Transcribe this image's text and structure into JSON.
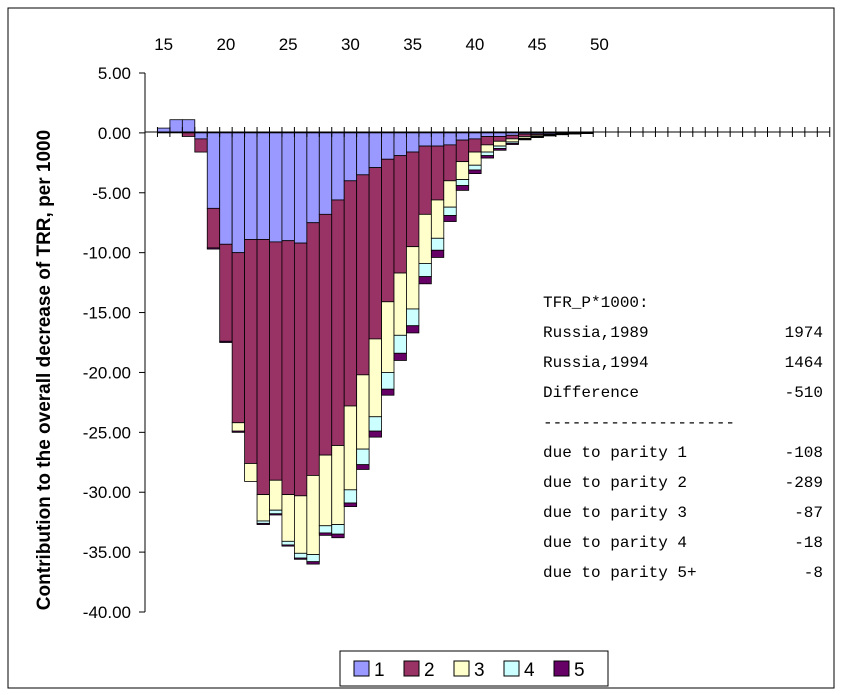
{
  "chart_data": {
    "type": "bar",
    "stacked": true,
    "title": "",
    "xlabel": "",
    "ylabel": "Contribution to the overall decrease of TRR, per 1000",
    "xlim": [
      14,
      55
    ],
    "ylim": [
      -40,
      5
    ],
    "x_ticks": [
      "15",
      "20",
      "25",
      "30",
      "35",
      "40",
      "45",
      "50"
    ],
    "y_ticks": [
      "5.00",
      "0.00",
      "-5.00",
      "-10.00",
      "-15.00",
      "-20.00",
      "-25.00",
      "-30.00",
      "-35.00",
      "-40.00"
    ],
    "grid": false,
    "legend_position": "bottom",
    "x": [
      15,
      16,
      17,
      18,
      19,
      20,
      21,
      22,
      23,
      24,
      25,
      26,
      27,
      28,
      29,
      30,
      31,
      32,
      33,
      34,
      35,
      36,
      37,
      38,
      39,
      40,
      41,
      42,
      43,
      44,
      45,
      46,
      47,
      48,
      49
    ],
    "series": [
      {
        "name": "1",
        "color": "#9999ff",
        "values": [
          0.4,
          1.1,
          1.1,
          -0.5,
          -6.3,
          -9.3,
          -10.0,
          -8.9,
          -8.9,
          -9.1,
          -9.0,
          -9.2,
          -7.5,
          -6.8,
          -5.6,
          -4.0,
          -3.5,
          -2.9,
          -2.2,
          -1.9,
          -1.6,
          -1.1,
          -1.1,
          -1.0,
          -0.6,
          -0.5,
          -0.3,
          -0.3,
          -0.2,
          -0.1,
          -0.1,
          -0.1,
          -0.05,
          -0.03,
          -0.02
        ]
      },
      {
        "name": "2",
        "color": "#993366",
        "values": [
          0,
          0,
          -0.3,
          -1.1,
          -3.3,
          -8.1,
          -14.2,
          -18.7,
          -21.3,
          -19.9,
          -21.2,
          -21.1,
          -21.1,
          -20.1,
          -20.5,
          -18.8,
          -16.7,
          -14.3,
          -11.9,
          -9.8,
          -7.9,
          -5.7,
          -4.5,
          -3.0,
          -1.8,
          -1.1,
          -0.7,
          -0.4,
          -0.3,
          -0.2,
          -0.1,
          -0.05,
          -0.03,
          -0.02,
          -0.01
        ]
      },
      {
        "name": "3",
        "color": "#ffffcc",
        "values": [
          0,
          0,
          0,
          0,
          0,
          0,
          -0.7,
          -1.5,
          -2.2,
          -2.5,
          -3.9,
          -4.8,
          -6.6,
          -5.9,
          -6.6,
          -7.0,
          -6.2,
          -6.5,
          -5.9,
          -5.2,
          -5.2,
          -4.1,
          -3.2,
          -2.2,
          -1.5,
          -1.1,
          -0.6,
          -0.4,
          -0.25,
          -0.15,
          -0.1,
          -0.05,
          -0.03,
          -0.02,
          -0.01
        ]
      },
      {
        "name": "4",
        "color": "#ccffff",
        "values": [
          0,
          0,
          0,
          0,
          0,
          0,
          0,
          0,
          -0.2,
          -0.3,
          -0.3,
          -0.4,
          -0.6,
          -0.6,
          -0.8,
          -1.1,
          -1.3,
          -1.2,
          -1.4,
          -1.5,
          -1.4,
          -1.1,
          -1.0,
          -0.7,
          -0.5,
          -0.4,
          -0.3,
          -0.2,
          -0.12,
          -0.07,
          -0.05,
          -0.03,
          -0.02,
          -0.01,
          0
        ]
      },
      {
        "name": "5",
        "color": "#660066",
        "values": [
          0,
          0,
          0,
          0,
          -0.1,
          -0.1,
          -0.1,
          0,
          -0.1,
          -0.1,
          -0.1,
          -0.1,
          -0.2,
          -0.2,
          -0.3,
          -0.3,
          -0.4,
          -0.5,
          -0.5,
          -0.6,
          -0.6,
          -0.6,
          -0.6,
          -0.5,
          -0.4,
          -0.3,
          -0.2,
          -0.15,
          -0.1,
          -0.06,
          -0.04,
          -0.02,
          -0.01,
          0,
          0
        ]
      }
    ],
    "annotation": {
      "title": "TFR_P*1000:",
      "rows": [
        {
          "label": "Russia,1989",
          "value": "1974"
        },
        {
          "label": "Russia,1994",
          "value": "1464"
        },
        {
          "label": "Difference",
          "value": "-510"
        }
      ],
      "separator": "--------------------",
      "parity_rows": [
        {
          "label": "due to parity 1",
          "value": "-108"
        },
        {
          "label": "due to parity 2",
          "value": "-289"
        },
        {
          "label": "due to parity 3",
          "value": "-87"
        },
        {
          "label": "due to parity 4",
          "value": "-18"
        },
        {
          "label": "due to parity 5+",
          "value": "-8"
        }
      ]
    }
  }
}
